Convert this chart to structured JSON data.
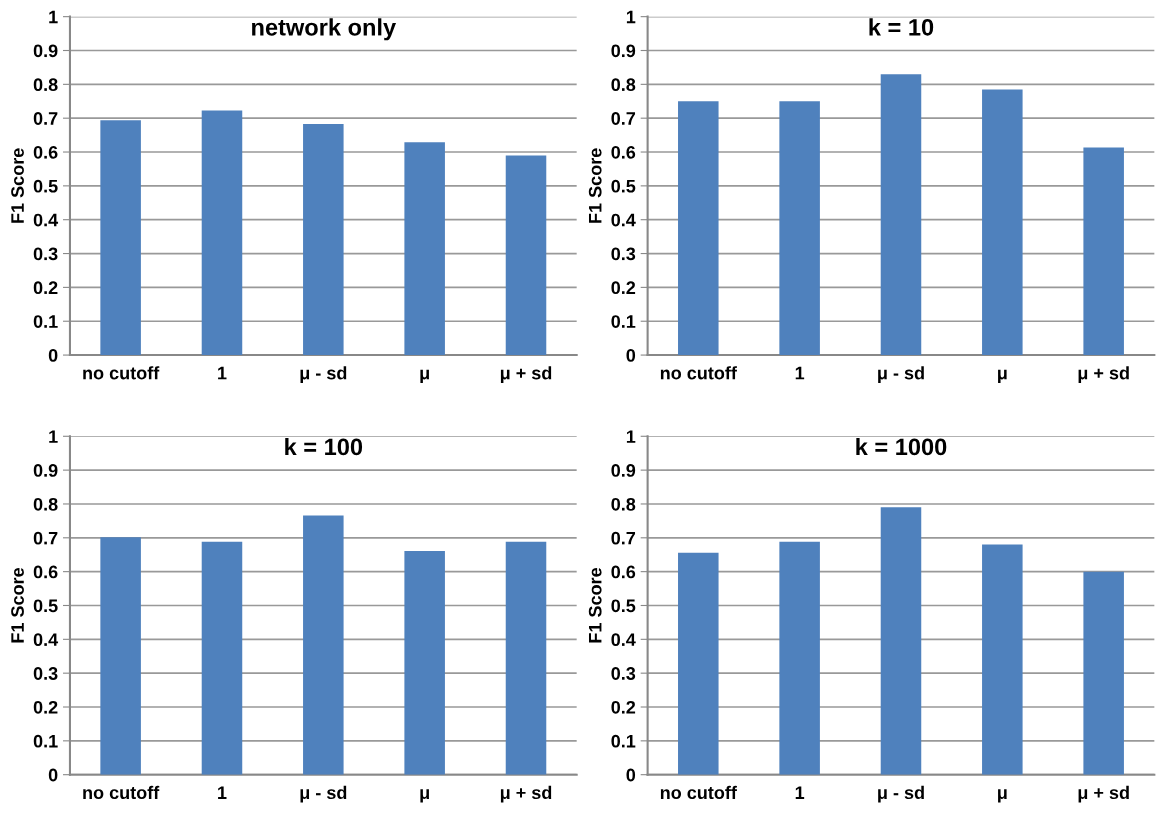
{
  "chart_data": [
    {
      "type": "bar",
      "title": "network only",
      "ylabel": "F1 Score",
      "categories": [
        "no cutoff",
        "1",
        "μ - sd",
        "μ",
        "μ + sd"
      ],
      "values": [
        0.694,
        0.723,
        0.683,
        0.629,
        0.59
      ],
      "color": "#4f81bd",
      "ylim": [
        0,
        1
      ],
      "yticks": [
        0,
        0.1,
        0.2,
        0.3,
        0.4,
        0.5,
        0.6,
        0.7,
        0.8,
        0.9,
        1
      ],
      "grid": "y",
      "legend": false
    },
    {
      "type": "bar",
      "title": "k = 10",
      "ylabel": "F1 Score",
      "categories": [
        "no cutoff",
        "1",
        "μ - sd",
        "μ",
        "μ + sd"
      ],
      "values": [
        0.75,
        0.75,
        0.83,
        0.785,
        0.613
      ],
      "color": "#4f81bd",
      "ylim": [
        0,
        1
      ],
      "yticks": [
        0,
        0.1,
        0.2,
        0.3,
        0.4,
        0.5,
        0.6,
        0.7,
        0.8,
        0.9,
        1
      ],
      "grid": "y",
      "legend": false
    },
    {
      "type": "bar",
      "title": "k = 100",
      "ylabel": "F1 Score",
      "categories": [
        "no cutoff",
        "1",
        "μ - sd",
        "μ",
        "μ + sd"
      ],
      "values": [
        0.702,
        0.688,
        0.766,
        0.661,
        0.688
      ],
      "color": "#4f81bd",
      "ylim": [
        0,
        1
      ],
      "yticks": [
        0,
        0.1,
        0.2,
        0.3,
        0.4,
        0.5,
        0.6,
        0.7,
        0.8,
        0.9,
        1
      ],
      "grid": "y",
      "legend": false
    },
    {
      "type": "bar",
      "title": "k = 1000",
      "ylabel": "F1 Score",
      "categories": [
        "no cutoff",
        "1",
        "μ - sd",
        "μ",
        "μ + sd"
      ],
      "values": [
        0.656,
        0.688,
        0.79,
        0.68,
        0.6
      ],
      "color": "#4f81bd",
      "ylim": [
        0,
        1
      ],
      "yticks": [
        0,
        0.1,
        0.2,
        0.3,
        0.4,
        0.5,
        0.6,
        0.7,
        0.8,
        0.9,
        1
      ],
      "grid": "y",
      "legend": false
    }
  ]
}
